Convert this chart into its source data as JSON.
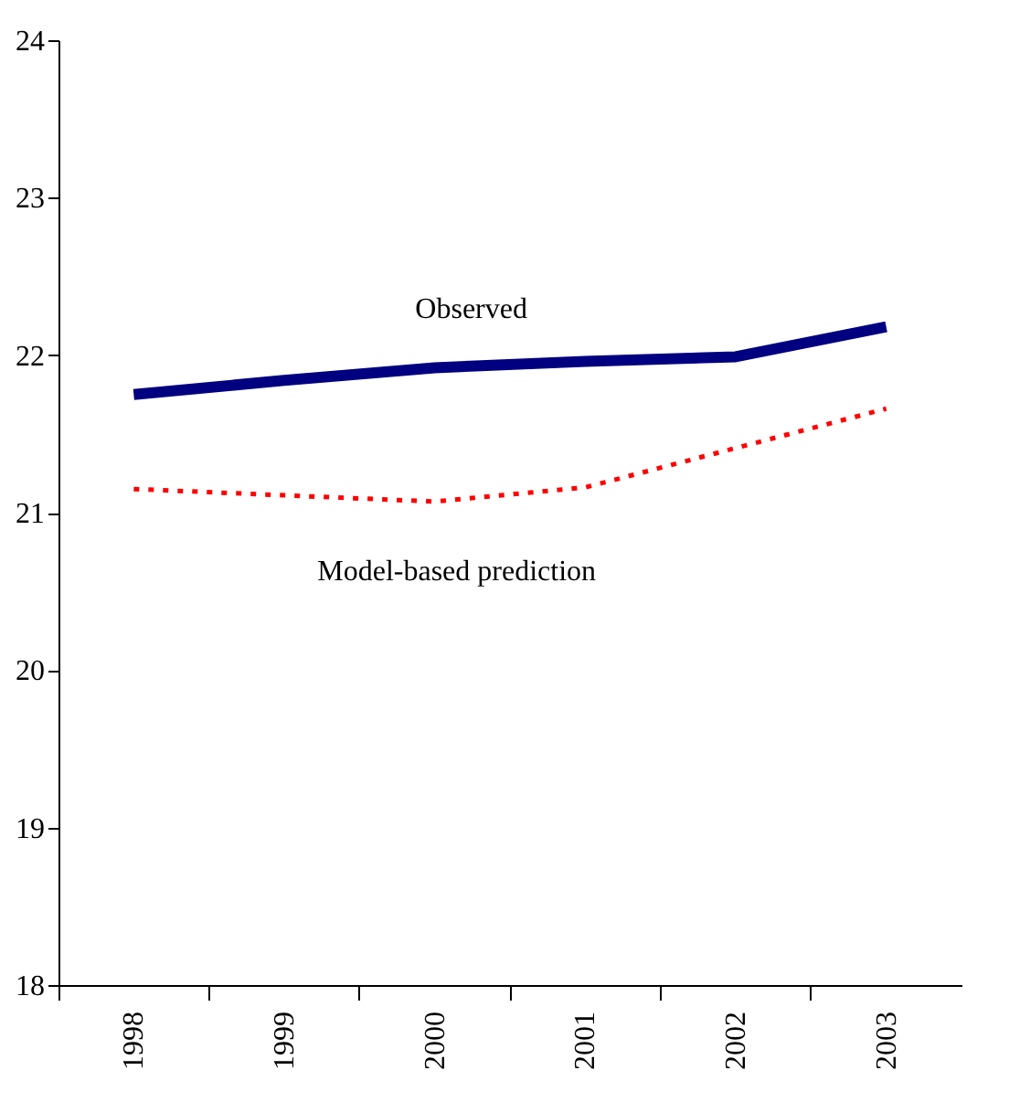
{
  "chart_data": {
    "type": "line",
    "categories": [
      "1998",
      "1999",
      "2000",
      "2001",
      "2002",
      "2003"
    ],
    "series": [
      {
        "name": "Observed",
        "color": "#000080",
        "line_style": "solid",
        "values": [
          21.75,
          21.84,
          21.92,
          21.96,
          21.99,
          22.18
        ]
      },
      {
        "name": "Model-based prediction",
        "color": "#ff0000",
        "line_style": "dotted",
        "values": [
          21.15,
          21.11,
          21.07,
          21.16,
          21.41,
          21.66
        ]
      }
    ],
    "ylim": [
      18,
      24
    ],
    "yticks": [
      18,
      19,
      20,
      21,
      22,
      23,
      24
    ],
    "grid": false,
    "legend": false,
    "marker": "none"
  }
}
